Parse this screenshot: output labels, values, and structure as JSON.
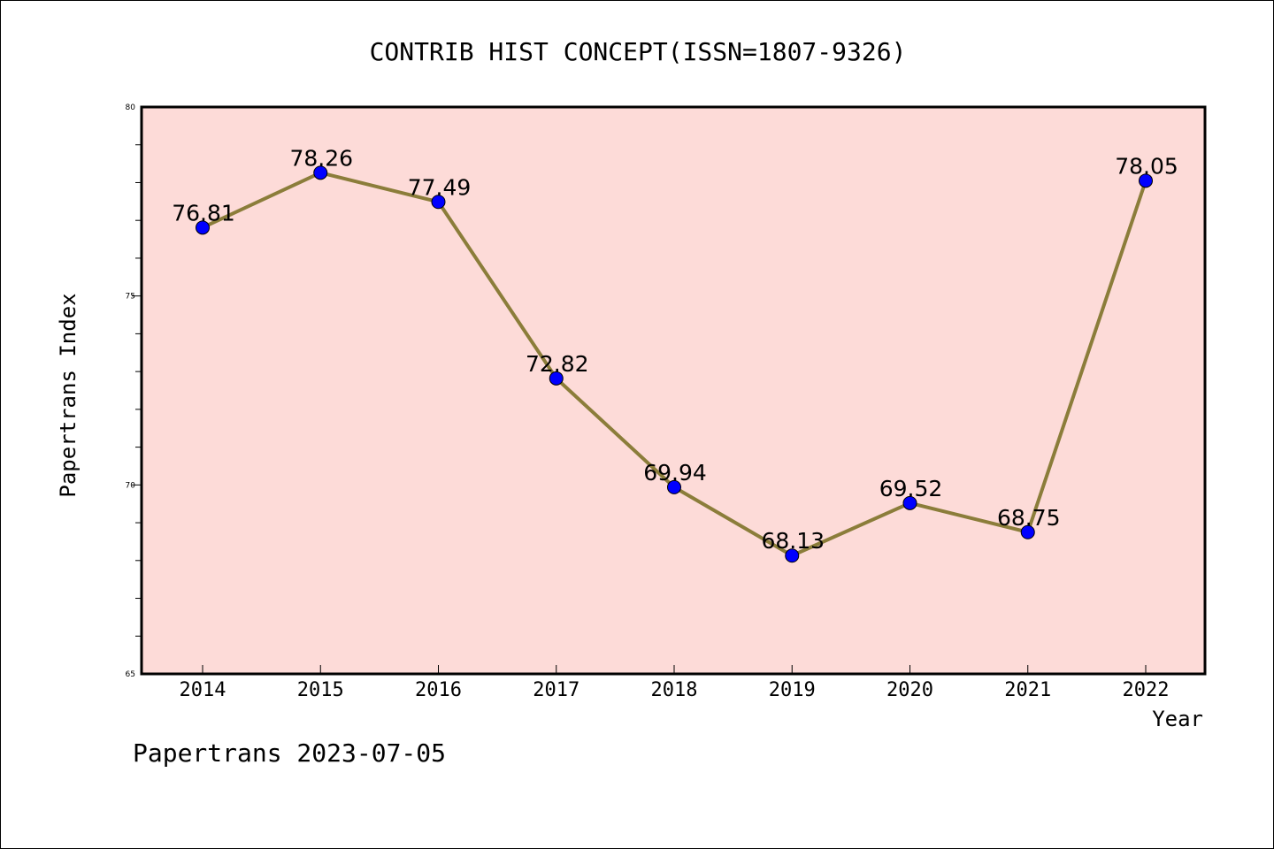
{
  "chart_data": {
    "type": "line",
    "title": "CONTRIB HIST CONCEPT(ISSN=1807-9326)",
    "xlabel": "Year",
    "ylabel": "Papertrans Index",
    "categories": [
      "2014",
      "2015",
      "2016",
      "2017",
      "2018",
      "2019",
      "2020",
      "2021",
      "2022"
    ],
    "series": [
      {
        "values": [
          76.81,
          78.26,
          77.49,
          72.82,
          69.94,
          68.13,
          69.52,
          68.75,
          78.05
        ],
        "line_color": "#8b7d3a",
        "marker_color": "#0000ff"
      }
    ],
    "data_labels": [
      "76.81",
      "78.26",
      "77.49",
      "72.82",
      "69.94",
      "68.13",
      "69.52",
      "68.75",
      "78.05"
    ],
    "ylim": [
      65,
      80
    ],
    "y_ticks": [
      "65",
      "70",
      "75",
      "80"
    ],
    "grid": false,
    "plot_background": "#fddbd8"
  },
  "footer": {
    "text": "Papertrans 2023-07-05"
  }
}
